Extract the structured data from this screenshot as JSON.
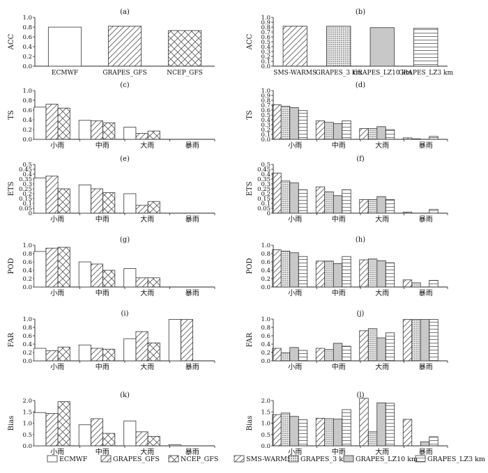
{
  "colors": {
    "axis": "#222222",
    "bar_stroke": "#333333",
    "solid_fill": "#c8c8c8",
    "pattern_stroke": "#555555"
  },
  "legend": {
    "items": [
      {
        "label": "ECMWF",
        "pattern": "blank"
      },
      {
        "label": "GRAPES_GFS",
        "pattern": "diag"
      },
      {
        "label": "NCEP_GFS",
        "pattern": "cross"
      },
      {
        "label": "SMS-WARMS",
        "pattern": "diag"
      },
      {
        "label": "GRAPES_3 km",
        "pattern": "dots"
      },
      {
        "label": "GRAPES_LZ10 km",
        "pattern": "solid"
      },
      {
        "label": "GRAPES_LZ3 km",
        "pattern": "hlines"
      }
    ]
  },
  "chart_data": [
    {
      "panel": "(a)",
      "type": "bar",
      "ylabel": "ACC",
      "ylim": [
        0,
        1.0
      ],
      "yticks": [
        "0.0",
        "0.2",
        "0.4",
        "0.6",
        "0.8",
        "1.0"
      ],
      "categories": [
        "ECMWF",
        "GRAPES_GFS",
        "NCEP_GFS"
      ],
      "series": [
        {
          "patterns": [
            "blank",
            "diag",
            "cross"
          ],
          "values": [
            0.8,
            0.82,
            0.73
          ]
        }
      ]
    },
    {
      "panel": "(b)",
      "type": "bar",
      "ylabel": "ACC",
      "ylim": [
        0,
        1.0
      ],
      "yticks": [
        "0.0",
        "0.1",
        "0.2",
        "0.3",
        "0.4",
        "0.5",
        "0.6",
        "0.7",
        "0.8",
        "0.9",
        "1.0"
      ],
      "categories": [
        "SMS-WARMS",
        "GRAPES_3 km",
        "GRAPES_LZ10 km",
        "GRAPES_LZ3 km"
      ],
      "series": [
        {
          "patterns": [
            "diag",
            "dots",
            "solid",
            "hlines"
          ],
          "values": [
            0.82,
            0.82,
            0.79,
            0.78
          ]
        }
      ]
    },
    {
      "panel": "(c)",
      "type": "bar",
      "ylabel": "TS",
      "ylim": [
        0,
        1.0
      ],
      "yticks": [
        "0.0",
        "0.2",
        "0.4",
        "0.6",
        "0.8",
        "1.0"
      ],
      "categories": [
        "小雨",
        "中雨",
        "大雨",
        "暴雨"
      ],
      "series": [
        {
          "name": "ECMWF",
          "pattern": "blank",
          "values": [
            0.66,
            0.39,
            0.25,
            0.0
          ]
        },
        {
          "name": "GRAPES_GFS",
          "pattern": "diag",
          "values": [
            0.72,
            0.38,
            0.12,
            0.0
          ]
        },
        {
          "name": "NCEP_GFS",
          "pattern": "cross",
          "values": [
            0.64,
            0.34,
            0.17,
            0.0
          ]
        }
      ]
    },
    {
      "panel": "(d)",
      "type": "bar",
      "ylabel": "TS",
      "ylim": [
        0,
        1.0
      ],
      "yticks": [
        "0.0",
        "0.1",
        "0.2",
        "0.3",
        "0.4",
        "0.5",
        "0.6",
        "0.7",
        "0.8",
        "0.9",
        "1.0"
      ],
      "categories": [
        "小雨",
        "中雨",
        "大雨",
        "暴雨"
      ],
      "series": [
        {
          "name": "SMS-WARMS",
          "pattern": "diag",
          "values": [
            0.71,
            0.38,
            0.22,
            0.03
          ]
        },
        {
          "name": "GRAPES_3 km",
          "pattern": "dots",
          "values": [
            0.68,
            0.35,
            0.22,
            0.01
          ]
        },
        {
          "name": "GRAPES_LZ10 km",
          "pattern": "solid",
          "values": [
            0.65,
            0.32,
            0.26,
            0.0
          ]
        },
        {
          "name": "GRAPES_LZ3 km",
          "pattern": "hlines",
          "values": [
            0.59,
            0.38,
            0.2,
            0.06
          ]
        }
      ]
    },
    {
      "panel": "(e)",
      "type": "bar",
      "ylabel": "ETS",
      "ylim": [
        0,
        0.5
      ],
      "yticks": [
        "0",
        "0.05",
        "0.1",
        "0.15",
        "0.2",
        "0.25",
        "0.3",
        "0.35",
        "0.4",
        "0.45",
        "0.5"
      ],
      "categories": [
        "小雨",
        "中雨",
        "大雨",
        "暴雨"
      ],
      "series": [
        {
          "name": "ECMWF",
          "pattern": "blank",
          "values": [
            0.36,
            0.29,
            0.2,
            0.0
          ]
        },
        {
          "name": "GRAPES_GFS",
          "pattern": "diag",
          "values": [
            0.38,
            0.25,
            0.08,
            0.0
          ]
        },
        {
          "name": "NCEP_GFS",
          "pattern": "cross",
          "values": [
            0.25,
            0.21,
            0.12,
            0.0
          ]
        }
      ]
    },
    {
      "panel": "(f)",
      "type": "bar",
      "ylabel": "ETS",
      "ylim": [
        0,
        0.5
      ],
      "yticks": [
        "0",
        "0.05",
        "0.1",
        "0.15",
        "0.2",
        "0.25",
        "0.3",
        "0.35",
        "0.4",
        "0.45",
        "0.5"
      ],
      "categories": [
        "小雨",
        "中雨",
        "大雨",
        "暴雨"
      ],
      "series": [
        {
          "name": "SMS-WARMS",
          "pattern": "diag",
          "values": [
            0.41,
            0.27,
            0.14,
            0.01
          ]
        },
        {
          "name": "GRAPES_3 km",
          "pattern": "dots",
          "values": [
            0.33,
            0.22,
            0.14,
            0.0
          ]
        },
        {
          "name": "GRAPES_LZ10 km",
          "pattern": "solid",
          "values": [
            0.31,
            0.18,
            0.17,
            0.0
          ]
        },
        {
          "name": "GRAPES_LZ3 km",
          "pattern": "hlines",
          "values": [
            0.24,
            0.24,
            0.14,
            0.04
          ]
        }
      ]
    },
    {
      "panel": "(g)",
      "type": "bar",
      "ylabel": "POD",
      "ylim": [
        0,
        1.0
      ],
      "yticks": [
        "0.0",
        "0.2",
        "0.4",
        "0.6",
        "0.8",
        "1.0"
      ],
      "categories": [
        "小雨",
        "中雨",
        "大雨",
        "暴雨"
      ],
      "series": [
        {
          "name": "ECMWF",
          "pattern": "blank",
          "values": [
            0.85,
            0.6,
            0.44,
            0.0
          ]
        },
        {
          "name": "GRAPES_GFS",
          "pattern": "diag",
          "values": [
            0.93,
            0.55,
            0.22,
            0.0
          ]
        },
        {
          "name": "NCEP_GFS",
          "pattern": "cross",
          "values": [
            0.95,
            0.4,
            0.22,
            0.0
          ]
        }
      ]
    },
    {
      "panel": "(h)",
      "type": "bar",
      "ylabel": "POD",
      "ylim": [
        0,
        1.0
      ],
      "yticks": [
        "0.0",
        "0.2",
        "0.4",
        "0.6",
        "0.8",
        "1.0"
      ],
      "categories": [
        "小雨",
        "中雨",
        "大雨",
        "暴雨"
      ],
      "series": [
        {
          "name": "SMS-WARMS",
          "pattern": "diag",
          "values": [
            0.89,
            0.62,
            0.65,
            0.17
          ]
        },
        {
          "name": "GRAPES_3 km",
          "pattern": "dots",
          "values": [
            0.86,
            0.62,
            0.67,
            0.1
          ]
        },
        {
          "name": "GRAPES_LZ10 km",
          "pattern": "solid",
          "values": [
            0.82,
            0.56,
            0.63,
            0.0
          ]
        },
        {
          "name": "GRAPES_LZ3 km",
          "pattern": "hlines",
          "values": [
            0.73,
            0.73,
            0.58,
            0.16
          ]
        }
      ]
    },
    {
      "panel": "(i)",
      "type": "bar",
      "ylabel": "FAR",
      "ylim": [
        0,
        1.0
      ],
      "yticks": [
        "0.0",
        "0.2",
        "0.4",
        "0.6",
        "0.8",
        "1.0"
      ],
      "categories": [
        "小雨",
        "中雨",
        "大雨",
        "暴雨"
      ],
      "series": [
        {
          "name": "ECMWF",
          "pattern": "blank",
          "values": [
            0.3,
            0.38,
            0.53,
            0.99
          ]
        },
        {
          "name": "GRAPES_GFS",
          "pattern": "diag",
          "values": [
            0.24,
            0.3,
            0.7,
            0.99
          ]
        },
        {
          "name": "NCEP_GFS",
          "pattern": "cross",
          "values": [
            0.33,
            0.28,
            0.43,
            0.0
          ]
        }
      ]
    },
    {
      "panel": "(j)",
      "type": "bar",
      "ylabel": "FAR",
      "ylim": [
        0,
        1.0
      ],
      "yticks": [
        "0.0",
        "0.2",
        "0.4",
        "0.6",
        "0.8",
        "1.0"
      ],
      "categories": [
        "小雨",
        "中雨",
        "大雨",
        "暴雨"
      ],
      "series": [
        {
          "name": "SMS-WARMS",
          "pattern": "diag",
          "values": [
            0.3,
            0.3,
            0.72,
            0.99
          ]
        },
        {
          "name": "GRAPES_3 km",
          "pattern": "dots",
          "values": [
            0.19,
            0.27,
            0.77,
            0.99
          ]
        },
        {
          "name": "GRAPES_LZ10 km",
          "pattern": "solid",
          "values": [
            0.32,
            0.42,
            0.55,
            0.99
          ]
        },
        {
          "name": "GRAPES_LZ3 km",
          "pattern": "hlines",
          "values": [
            0.25,
            0.35,
            0.67,
            0.99
          ]
        }
      ]
    },
    {
      "panel": "(k)",
      "type": "bar",
      "ylabel": "Bias",
      "ylim": [
        0,
        2.0
      ],
      "yticks": [
        "0.0",
        "0.5",
        "1.0",
        "1.5",
        "2.0"
      ],
      "categories": [
        "小雨",
        "中雨",
        "大雨",
        "暴雨"
      ],
      "series": [
        {
          "name": "ECMWF",
          "pattern": "blank",
          "values": [
            1.47,
            0.93,
            1.1,
            0.05
          ]
        },
        {
          "name": "GRAPES_GFS",
          "pattern": "diag",
          "values": [
            1.43,
            1.2,
            0.62,
            0.0
          ]
        },
        {
          "name": "NCEP_GFS",
          "pattern": "cross",
          "values": [
            1.95,
            0.55,
            0.42,
            0.0
          ]
        }
      ]
    },
    {
      "panel": "(l)",
      "type": "bar",
      "ylabel": "Bias",
      "ylim": [
        0,
        2.0
      ],
      "yticks": [
        "0.0",
        "0.5",
        "1.0",
        "1.5",
        "2.0"
      ],
      "categories": [
        "小雨",
        "中雨",
        "大雨",
        "暴雨"
      ],
      "series": [
        {
          "name": "SMS-WARMS",
          "pattern": "diag",
          "values": [
            1.38,
            1.22,
            2.1,
            1.17
          ]
        },
        {
          "name": "GRAPES_3 km",
          "pattern": "dots",
          "values": [
            1.45,
            1.2,
            0.62,
            0.0
          ]
        },
        {
          "name": "GRAPES_LZ10 km",
          "pattern": "solid",
          "values": [
            1.3,
            1.18,
            1.9,
            0.18
          ]
        },
        {
          "name": "GRAPES_LZ3 km",
          "pattern": "hlines",
          "values": [
            1.15,
            1.6,
            1.88,
            0.4
          ]
        }
      ]
    }
  ]
}
